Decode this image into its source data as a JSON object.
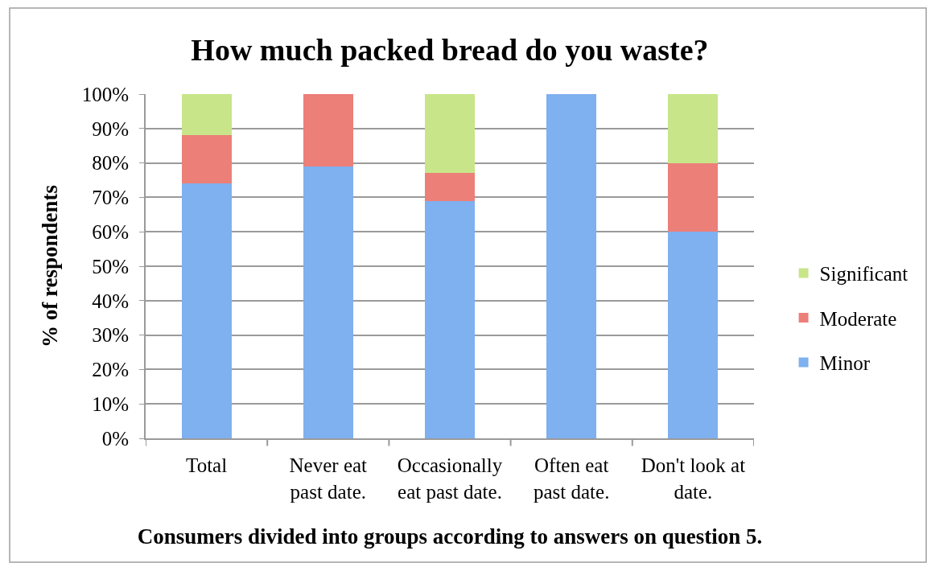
{
  "chart_data": {
    "type": "bar",
    "stacked": true,
    "title": "How much packed bread do you waste?",
    "xlabel": "Consumers divided into groups according to answers on question 5.",
    "ylabel": "% of respondents",
    "categories": [
      "Total",
      "Never eat\npast date.",
      "Occasionally\neat past date.",
      "Often eat\npast date.",
      "Don't look at\ndate."
    ],
    "series": [
      {
        "name": "Minor",
        "color": "#7fb0ef",
        "values": [
          74,
          79,
          69,
          100,
          60
        ]
      },
      {
        "name": "Moderate",
        "color": "#ec7f78",
        "values": [
          14,
          21,
          8,
          0,
          20
        ]
      },
      {
        "name": "Significant",
        "color": "#c8e58a",
        "values": [
          12,
          0,
          23,
          0,
          20
        ]
      }
    ],
    "ylim": [
      0,
      100
    ],
    "yticks": [
      {
        "value": 0,
        "label": "0%"
      },
      {
        "value": 10,
        "label": "10%"
      },
      {
        "value": 20,
        "label": "20%"
      },
      {
        "value": 30,
        "label": "30%"
      },
      {
        "value": 40,
        "label": "40%"
      },
      {
        "value": 50,
        "label": "50%"
      },
      {
        "value": 60,
        "label": "60%"
      },
      {
        "value": 70,
        "label": "70%"
      },
      {
        "value": 80,
        "label": "80%"
      },
      {
        "value": 90,
        "label": "90%"
      },
      {
        "value": 100,
        "label": "100%"
      }
    ],
    "grid": "y",
    "legend": "right"
  }
}
